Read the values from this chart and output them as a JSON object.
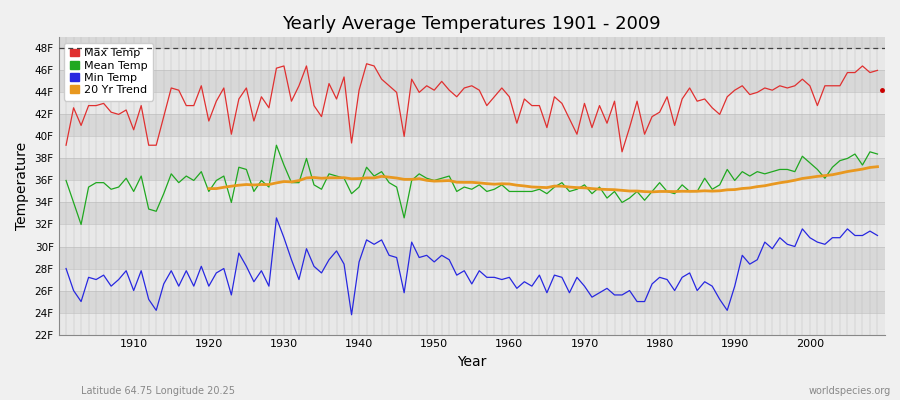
{
  "title": "Yearly Average Temperatures 1901 - 2009",
  "xlabel": "Year",
  "ylabel": "Temperature",
  "lat_lon_label": "Latitude 64.75 Longitude 20.25",
  "watermark": "worldspecies.org",
  "year_start": 1901,
  "year_end": 2009,
  "ylim": [
    22,
    49
  ],
  "yticks": [
    22,
    24,
    26,
    28,
    30,
    32,
    34,
    36,
    38,
    40,
    42,
    44,
    46,
    48
  ],
  "ytick_labels": [
    "22F",
    "24F",
    "26F",
    "28F",
    "30F",
    "32F",
    "34F",
    "36F",
    "38F",
    "40F",
    "42F",
    "44F",
    "46F",
    "48F"
  ],
  "xticks": [
    1910,
    1920,
    1930,
    1940,
    1950,
    1960,
    1970,
    1980,
    1990,
    2000
  ],
  "colors": {
    "max_temp": "#e03030",
    "mean_temp": "#20a820",
    "min_temp": "#2828e0",
    "trend": "#e89820",
    "bg_light": "#e8e8e8",
    "bg_dark": "#d8d8d8",
    "grid_v": "#c8c8c8",
    "dashed_line": "#404040",
    "dot_end": "#cc0000"
  },
  "max_temp": [
    39.2,
    42.6,
    41.0,
    42.8,
    42.8,
    43.0,
    42.2,
    42.0,
    42.4,
    40.6,
    42.8,
    39.2,
    39.2,
    41.8,
    44.4,
    44.2,
    42.8,
    42.8,
    44.6,
    41.4,
    43.2,
    44.4,
    40.2,
    43.4,
    44.4,
    41.4,
    43.6,
    42.6,
    46.2,
    46.4,
    43.2,
    44.6,
    46.4,
    42.8,
    41.8,
    44.8,
    43.4,
    45.4,
    39.4,
    44.2,
    46.6,
    46.4,
    45.2,
    44.6,
    44.0,
    40.0,
    45.2,
    44.0,
    44.6,
    44.2,
    45.0,
    44.2,
    43.6,
    44.4,
    44.6,
    44.2,
    42.8,
    43.6,
    44.4,
    43.6,
    41.2,
    43.4,
    42.8,
    42.8,
    40.8,
    43.6,
    43.0,
    41.6,
    40.2,
    43.0,
    40.8,
    42.8,
    41.2,
    43.2,
    38.6,
    40.8,
    43.2,
    40.2,
    41.8,
    42.2,
    43.6,
    41.0,
    43.4,
    44.4,
    43.2,
    43.4,
    42.6,
    42.0,
    43.6,
    44.2,
    44.6,
    43.8,
    44.0,
    44.4,
    44.2,
    44.6,
    44.4,
    44.6,
    45.2,
    44.6,
    42.8,
    44.6,
    44.6,
    44.6,
    45.8,
    45.8,
    46.4,
    45.8,
    46.0
  ],
  "mean_temp": [
    36.0,
    34.0,
    32.0,
    35.4,
    35.8,
    35.8,
    35.2,
    35.4,
    36.2,
    35.0,
    36.4,
    33.4,
    33.2,
    34.8,
    36.6,
    35.8,
    36.4,
    36.0,
    36.8,
    35.0,
    36.0,
    36.4,
    34.0,
    37.2,
    37.0,
    35.0,
    36.0,
    35.4,
    39.2,
    37.4,
    35.8,
    35.8,
    38.0,
    35.6,
    35.2,
    36.6,
    36.4,
    36.2,
    34.8,
    35.4,
    37.2,
    36.4,
    36.8,
    35.8,
    35.4,
    32.6,
    36.0,
    36.6,
    36.2,
    36.0,
    36.2,
    36.4,
    35.0,
    35.4,
    35.2,
    35.6,
    35.0,
    35.2,
    35.6,
    35.0,
    35.0,
    35.0,
    35.0,
    35.2,
    34.8,
    35.4,
    35.8,
    35.0,
    35.2,
    35.6,
    34.8,
    35.4,
    34.4,
    35.0,
    34.0,
    34.4,
    35.0,
    34.2,
    35.0,
    35.8,
    35.0,
    34.8,
    35.6,
    35.0,
    35.0,
    36.2,
    35.2,
    35.6,
    37.0,
    36.0,
    36.8,
    36.4,
    36.8,
    36.6,
    36.8,
    37.0,
    37.0,
    36.8,
    38.2,
    37.6,
    37.0,
    36.2,
    37.2,
    37.8,
    38.0,
    38.4,
    37.4,
    38.6,
    38.4
  ],
  "min_temp": [
    28.0,
    26.0,
    25.0,
    27.2,
    27.0,
    27.4,
    26.4,
    27.0,
    27.8,
    26.0,
    27.8,
    25.2,
    24.2,
    26.6,
    27.8,
    26.4,
    27.8,
    26.4,
    28.2,
    26.4,
    27.6,
    28.0,
    25.6,
    29.4,
    28.2,
    26.8,
    27.8,
    26.4,
    32.6,
    30.8,
    28.8,
    27.0,
    29.8,
    28.2,
    27.6,
    28.8,
    29.6,
    28.4,
    23.8,
    28.6,
    30.6,
    30.2,
    30.6,
    29.2,
    29.0,
    25.8,
    30.4,
    29.0,
    29.2,
    28.6,
    29.2,
    28.8,
    27.4,
    27.8,
    26.6,
    27.8,
    27.2,
    27.2,
    27.0,
    27.2,
    26.2,
    26.8,
    26.4,
    27.4,
    25.8,
    27.4,
    27.2,
    25.8,
    27.2,
    26.4,
    25.4,
    25.8,
    26.2,
    25.6,
    25.6,
    26.0,
    25.0,
    25.0,
    26.6,
    27.2,
    27.0,
    26.0,
    27.2,
    27.6,
    26.0,
    26.8,
    26.4,
    25.2,
    24.2,
    26.4,
    29.2,
    28.4,
    28.8,
    30.4,
    29.8,
    30.8,
    30.2,
    30.0,
    31.6,
    30.8,
    30.4,
    30.2,
    30.8,
    30.8,
    31.6,
    31.0,
    31.0,
    31.4,
    31.0
  ],
  "trend_start_year": 1920,
  "trend": [
    35.1,
    35.2,
    35.4,
    35.6,
    35.7,
    35.8,
    35.9,
    35.9,
    36.0,
    36.0,
    36.1,
    36.1,
    36.1,
    36.1,
    36.0,
    36.0,
    36.0,
    35.9,
    35.9,
    35.8,
    35.8,
    35.7,
    35.7,
    35.6,
    35.6,
    35.5,
    35.4,
    35.4,
    35.3,
    35.3,
    35.2,
    35.2,
    35.1,
    35.1,
    35.1,
    35.1,
    35.0,
    35.0,
    35.0,
    35.0,
    35.0,
    35.1,
    35.1,
    35.2,
    35.3,
    35.4,
    35.5,
    35.6,
    35.7,
    35.8,
    35.9,
    36.0,
    36.1,
    36.2,
    36.3,
    36.4,
    36.5,
    36.6,
    36.7,
    36.8,
    36.9,
    37.0,
    37.1,
    37.2,
    37.3,
    37.4,
    37.5,
    37.5,
    37.6,
    37.6,
    37.7,
    37.8,
    37.9,
    37.9,
    38.0,
    38.0,
    38.1,
    38.1,
    38.2,
    38.3,
    38.3,
    38.3,
    38.4,
    38.4,
    38.4,
    38.5,
    38.5,
    38.5,
    38.6,
    38.6
  ]
}
